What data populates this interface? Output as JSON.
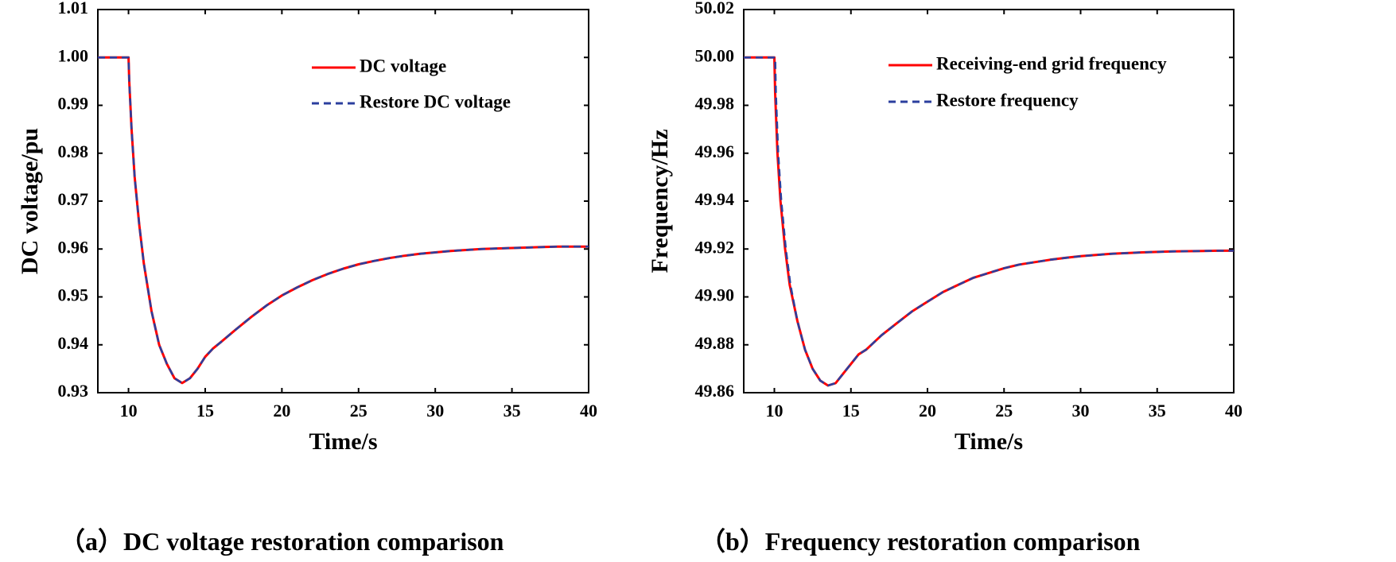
{
  "chart_data": [
    {
      "type": "line",
      "panel": "a",
      "caption": "（a）DC voltage restoration comparison",
      "xlabel": "Time/s",
      "ylabel": "DC voltage/pu",
      "xlim": [
        8,
        40
      ],
      "ylim": [
        0.93,
        1.01
      ],
      "xticks": [
        10,
        15,
        20,
        25,
        30,
        35,
        40
      ],
      "xtick_labels": [
        "10",
        "15",
        "20",
        "25",
        "30",
        "35",
        "40"
      ],
      "yticks": [
        0.93,
        0.94,
        0.95,
        0.96,
        0.97,
        0.98,
        0.99,
        1.0,
        1.01
      ],
      "ytick_labels": [
        "0.93",
        "0.94",
        "0.95",
        "0.96",
        "0.97",
        "0.98",
        "0.99",
        "1.00",
        "1.01"
      ],
      "legend_position": "top-right",
      "series": [
        {
          "name": "DC voltage",
          "color": "#ff0000",
          "style": "solid",
          "x": [
            8,
            10.0,
            10.05,
            10.2,
            10.4,
            10.7,
            11.0,
            11.5,
            12.0,
            12.5,
            13.0,
            13.5,
            14.0,
            14.5,
            15.0,
            15.5,
            16,
            17,
            18,
            19,
            20,
            21,
            22,
            23,
            24,
            25,
            26,
            27,
            28,
            29,
            30,
            31,
            32,
            33,
            34,
            35,
            36,
            37,
            38,
            39,
            40
          ],
          "y": [
            1.0,
            1.0,
            0.995,
            0.985,
            0.975,
            0.965,
            0.957,
            0.947,
            0.94,
            0.936,
            0.933,
            0.932,
            0.933,
            0.935,
            0.9375,
            0.9392,
            0.9405,
            0.9432,
            0.9458,
            0.9482,
            0.9503,
            0.952,
            0.9535,
            0.9548,
            0.9559,
            0.9568,
            0.9575,
            0.9581,
            0.9586,
            0.959,
            0.9593,
            0.9596,
            0.9598,
            0.96,
            0.9601,
            0.9602,
            0.9603,
            0.9604,
            0.9605,
            0.9605,
            0.9605
          ]
        },
        {
          "name": "Restore DC voltage",
          "color": "#2b3f9e",
          "style": "dashed",
          "x": [
            8,
            10.0,
            10.05,
            10.2,
            10.4,
            10.7,
            11.0,
            11.5,
            12.0,
            12.5,
            13.0,
            13.5,
            14.0,
            14.5,
            15.0,
            15.5,
            16,
            17,
            18,
            19,
            20,
            21,
            22,
            23,
            24,
            25,
            26,
            27,
            28,
            29,
            30,
            31,
            32,
            33,
            34,
            35,
            36,
            37,
            38,
            39,
            40
          ],
          "y": [
            1.0,
            1.0,
            0.995,
            0.985,
            0.975,
            0.965,
            0.957,
            0.947,
            0.94,
            0.936,
            0.933,
            0.932,
            0.933,
            0.935,
            0.9375,
            0.9392,
            0.9405,
            0.9432,
            0.9458,
            0.9482,
            0.9503,
            0.952,
            0.9535,
            0.9548,
            0.9559,
            0.9568,
            0.9575,
            0.9581,
            0.9586,
            0.959,
            0.9593,
            0.9596,
            0.9598,
            0.96,
            0.9601,
            0.9602,
            0.9603,
            0.9604,
            0.9605,
            0.9605,
            0.9605
          ]
        }
      ]
    },
    {
      "type": "line",
      "panel": "b",
      "caption": "（b）Frequency restoration comparison",
      "xlabel": "Time/s",
      "ylabel": "Frequency/Hz",
      "xlim": [
        8,
        40
      ],
      "ylim": [
        49.86,
        50.02
      ],
      "xticks": [
        10,
        15,
        20,
        25,
        30,
        35,
        40
      ],
      "xtick_labels": [
        "10",
        "15",
        "20",
        "25",
        "30",
        "35",
        "40"
      ],
      "yticks": [
        49.86,
        49.88,
        49.9,
        49.92,
        49.94,
        49.96,
        49.98,
        50.0,
        50.02
      ],
      "ytick_labels": [
        "49.86",
        "49.88",
        "49.90",
        "49.92",
        "49.94",
        "49.96",
        "49.98",
        "50.00",
        "50.02"
      ],
      "legend_position": "top-right",
      "series": [
        {
          "name": "Receiving-end grid frequency",
          "color": "#ff0000",
          "style": "solid",
          "x": [
            8,
            10.0,
            10.05,
            10.2,
            10.4,
            10.7,
            11.0,
            11.5,
            12.0,
            12.5,
            13.0,
            13.5,
            14.0,
            14.5,
            15.0,
            15.5,
            16,
            17,
            18,
            19,
            20,
            21,
            22,
            23,
            24,
            25,
            26,
            27,
            28,
            29,
            30,
            31,
            32,
            33,
            34,
            35,
            36,
            37,
            38,
            39,
            40
          ],
          "y": [
            50.0,
            50.0,
            49.985,
            49.96,
            49.94,
            49.92,
            49.905,
            49.89,
            49.878,
            49.87,
            49.865,
            49.863,
            49.864,
            49.868,
            49.872,
            49.876,
            49.878,
            49.884,
            49.889,
            49.894,
            49.898,
            49.902,
            49.905,
            49.908,
            49.91,
            49.912,
            49.9135,
            49.9145,
            49.9155,
            49.9163,
            49.917,
            49.9175,
            49.918,
            49.9183,
            49.9186,
            49.9188,
            49.919,
            49.9191,
            49.9192,
            49.9193,
            49.9193
          ]
        },
        {
          "name": "Restore frequency",
          "color": "#2b3f9e",
          "style": "dashed",
          "x": [
            8,
            10.05,
            10.1,
            10.25,
            10.45,
            10.75,
            11.05,
            11.5,
            12.0,
            12.5,
            13.0,
            13.5,
            14.0,
            14.5,
            15.0,
            15.5,
            16,
            17,
            18,
            19,
            20,
            21,
            22,
            23,
            24,
            25,
            26,
            27,
            28,
            29,
            30,
            31,
            32,
            33,
            34,
            35,
            36,
            37,
            38,
            39,
            40
          ],
          "y": [
            50.0,
            50.0,
            49.985,
            49.96,
            49.94,
            49.92,
            49.905,
            49.89,
            49.878,
            49.87,
            49.865,
            49.863,
            49.864,
            49.868,
            49.872,
            49.876,
            49.878,
            49.884,
            49.889,
            49.894,
            49.898,
            49.902,
            49.905,
            49.908,
            49.91,
            49.912,
            49.9135,
            49.9145,
            49.9155,
            49.9163,
            49.917,
            49.9175,
            49.918,
            49.9183,
            49.9186,
            49.9188,
            49.919,
            49.9191,
            49.9192,
            49.9193,
            49.9193
          ]
        }
      ]
    }
  ]
}
